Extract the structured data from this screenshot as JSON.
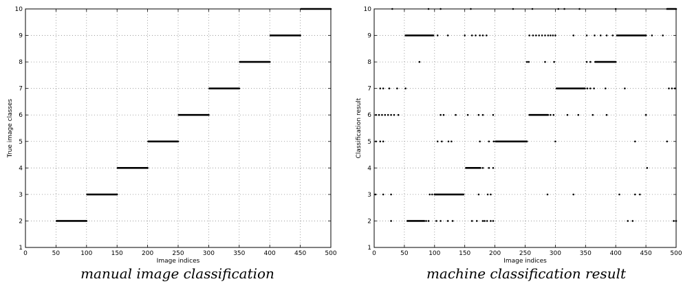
{
  "chart_data": [
    {
      "type": "scatter",
      "caption": "manual image classification",
      "xlabel": "Image indices",
      "ylabel": "True image classes",
      "xlim": [
        0,
        500
      ],
      "ylim": [
        1,
        10
      ],
      "xticks": [
        0,
        50,
        100,
        150,
        200,
        250,
        300,
        350,
        400,
        450,
        500
      ],
      "yticks": [
        1,
        2,
        3,
        4,
        5,
        6,
        7,
        8,
        9,
        10
      ],
      "grid": true,
      "segments": [
        {
          "x": [
            51,
            100
          ],
          "y": 2
        },
        {
          "x": [
            101,
            150
          ],
          "y": 3
        },
        {
          "x": [
            151,
            200
          ],
          "y": 4
        },
        {
          "x": [
            201,
            250
          ],
          "y": 5
        },
        {
          "x": [
            251,
            300
          ],
          "y": 6
        },
        {
          "x": [
            301,
            350
          ],
          "y": 7
        },
        {
          "x": [
            351,
            400
          ],
          "y": 8
        },
        {
          "x": [
            401,
            450
          ],
          "y": 9
        },
        {
          "x": [
            451,
            500
          ],
          "y": 10
        }
      ],
      "points": []
    },
    {
      "type": "scatter",
      "caption": "machine classification result",
      "xlabel": "Image indices",
      "ylabel": "Classification result",
      "xlim": [
        0,
        500
      ],
      "ylim": [
        1,
        10
      ],
      "xticks": [
        0,
        50,
        100,
        150,
        200,
        250,
        300,
        350,
        400,
        450,
        500
      ],
      "yticks": [
        1,
        2,
        3,
        4,
        5,
        6,
        7,
        8,
        9,
        10
      ],
      "grid": true,
      "segments": [
        {
          "x": [
            55,
            83
          ],
          "y": 2
        },
        {
          "x": [
            100,
            148
          ],
          "y": 3
        },
        {
          "x": [
            152,
            176
          ],
          "y": 4
        },
        {
          "x": [
            201,
            253
          ],
          "y": 5
        },
        {
          "x": [
            257,
            288
          ],
          "y": 6
        },
        {
          "x": [
            302,
            349
          ],
          "y": 7
        },
        {
          "x": [
            366,
            400
          ],
          "y": 8
        },
        {
          "x": [
            52,
            98
          ],
          "y": 9
        },
        {
          "x": [
            402,
            450
          ],
          "y": 9
        },
        {
          "x": [
            485,
            500
          ],
          "y": 10
        }
      ],
      "points": [
        {
          "x": 28,
          "y": 2
        },
        {
          "x": 86,
          "y": 2
        },
        {
          "x": 90,
          "y": 2
        },
        {
          "x": 103,
          "y": 2
        },
        {
          "x": 110,
          "y": 2
        },
        {
          "x": 122,
          "y": 2
        },
        {
          "x": 130,
          "y": 2
        },
        {
          "x": 162,
          "y": 2
        },
        {
          "x": 170,
          "y": 2
        },
        {
          "x": 180,
          "y": 2
        },
        {
          "x": 183,
          "y": 2
        },
        {
          "x": 187,
          "y": 2
        },
        {
          "x": 193,
          "y": 2
        },
        {
          "x": 197,
          "y": 2
        },
        {
          "x": 420,
          "y": 2
        },
        {
          "x": 428,
          "y": 2
        },
        {
          "x": 496,
          "y": 2
        },
        {
          "x": 500,
          "y": 2
        },
        {
          "x": 2,
          "y": 3
        },
        {
          "x": 15,
          "y": 3
        },
        {
          "x": 28,
          "y": 3
        },
        {
          "x": 92,
          "y": 3
        },
        {
          "x": 96,
          "y": 3
        },
        {
          "x": 173,
          "y": 3
        },
        {
          "x": 188,
          "y": 3
        },
        {
          "x": 193,
          "y": 3
        },
        {
          "x": 287,
          "y": 3
        },
        {
          "x": 330,
          "y": 3
        },
        {
          "x": 406,
          "y": 3
        },
        {
          "x": 432,
          "y": 3
        },
        {
          "x": 440,
          "y": 3
        },
        {
          "x": 180,
          "y": 4
        },
        {
          "x": 190,
          "y": 4
        },
        {
          "x": 197,
          "y": 4
        },
        {
          "x": 452,
          "y": 4
        },
        {
          "x": 3,
          "y": 5
        },
        {
          "x": 10,
          "y": 5
        },
        {
          "x": 15,
          "y": 5
        },
        {
          "x": 105,
          "y": 5
        },
        {
          "x": 112,
          "y": 5
        },
        {
          "x": 123,
          "y": 5
        },
        {
          "x": 128,
          "y": 5
        },
        {
          "x": 175,
          "y": 5
        },
        {
          "x": 190,
          "y": 5
        },
        {
          "x": 198,
          "y": 5
        },
        {
          "x": 300,
          "y": 5
        },
        {
          "x": 432,
          "y": 5
        },
        {
          "x": 485,
          "y": 5
        },
        {
          "x": 3,
          "y": 6
        },
        {
          "x": 8,
          "y": 6
        },
        {
          "x": 13,
          "y": 6
        },
        {
          "x": 18,
          "y": 6
        },
        {
          "x": 23,
          "y": 6
        },
        {
          "x": 28,
          "y": 6
        },
        {
          "x": 33,
          "y": 6
        },
        {
          "x": 40,
          "y": 6
        },
        {
          "x": 110,
          "y": 6
        },
        {
          "x": 115,
          "y": 6
        },
        {
          "x": 135,
          "y": 6
        },
        {
          "x": 155,
          "y": 6
        },
        {
          "x": 173,
          "y": 6
        },
        {
          "x": 180,
          "y": 6
        },
        {
          "x": 197,
          "y": 6
        },
        {
          "x": 292,
          "y": 6
        },
        {
          "x": 297,
          "y": 6
        },
        {
          "x": 320,
          "y": 6
        },
        {
          "x": 338,
          "y": 6
        },
        {
          "x": 362,
          "y": 6
        },
        {
          "x": 385,
          "y": 6
        },
        {
          "x": 450,
          "y": 6
        },
        {
          "x": 10,
          "y": 7
        },
        {
          "x": 15,
          "y": 7
        },
        {
          "x": 25,
          "y": 7
        },
        {
          "x": 38,
          "y": 7
        },
        {
          "x": 52,
          "y": 7
        },
        {
          "x": 353,
          "y": 7
        },
        {
          "x": 358,
          "y": 7
        },
        {
          "x": 364,
          "y": 7
        },
        {
          "x": 383,
          "y": 7
        },
        {
          "x": 415,
          "y": 7
        },
        {
          "x": 488,
          "y": 7
        },
        {
          "x": 493,
          "y": 7
        },
        {
          "x": 498,
          "y": 7
        },
        {
          "x": 75,
          "y": 8
        },
        {
          "x": 253,
          "y": 8
        },
        {
          "x": 256,
          "y": 8
        },
        {
          "x": 283,
          "y": 8
        },
        {
          "x": 298,
          "y": 8
        },
        {
          "x": 352,
          "y": 8
        },
        {
          "x": 358,
          "y": 8
        },
        {
          "x": 105,
          "y": 9
        },
        {
          "x": 122,
          "y": 9
        },
        {
          "x": 150,
          "y": 9
        },
        {
          "x": 162,
          "y": 9
        },
        {
          "x": 168,
          "y": 9
        },
        {
          "x": 175,
          "y": 9
        },
        {
          "x": 180,
          "y": 9
        },
        {
          "x": 186,
          "y": 9
        },
        {
          "x": 257,
          "y": 9
        },
        {
          "x": 263,
          "y": 9
        },
        {
          "x": 268,
          "y": 9
        },
        {
          "x": 273,
          "y": 9
        },
        {
          "x": 278,
          "y": 9
        },
        {
          "x": 283,
          "y": 9
        },
        {
          "x": 288,
          "y": 9
        },
        {
          "x": 292,
          "y": 9
        },
        {
          "x": 296,
          "y": 9
        },
        {
          "x": 300,
          "y": 9
        },
        {
          "x": 330,
          "y": 9
        },
        {
          "x": 352,
          "y": 9
        },
        {
          "x": 365,
          "y": 9
        },
        {
          "x": 375,
          "y": 9
        },
        {
          "x": 385,
          "y": 9
        },
        {
          "x": 395,
          "y": 9
        },
        {
          "x": 460,
          "y": 9
        },
        {
          "x": 478,
          "y": 9
        },
        {
          "x": 30,
          "y": 10
        },
        {
          "x": 90,
          "y": 10
        },
        {
          "x": 110,
          "y": 10
        },
        {
          "x": 160,
          "y": 10
        },
        {
          "x": 230,
          "y": 10
        },
        {
          "x": 262,
          "y": 10
        },
        {
          "x": 305,
          "y": 10
        },
        {
          "x": 315,
          "y": 10
        },
        {
          "x": 340,
          "y": 10
        },
        {
          "x": 400,
          "y": 10
        }
      ]
    }
  ]
}
